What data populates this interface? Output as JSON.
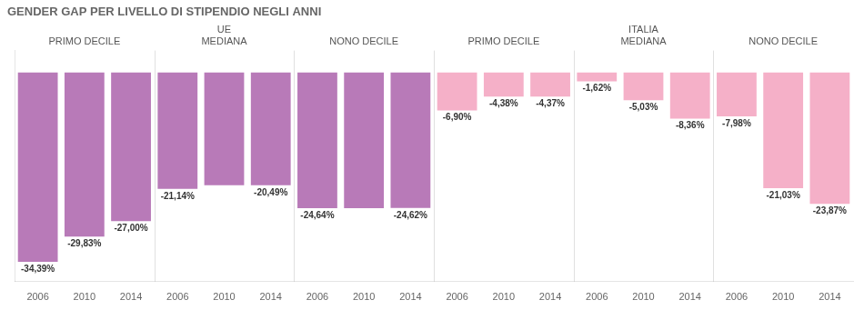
{
  "chart_data": {
    "type": "bar",
    "title": "GENDER GAP PER LIVELLO DI STIPENDIO NEGLI ANNI",
    "categories": [
      "2006",
      "2010",
      "2014",
      "2006",
      "2010",
      "2014",
      "2006",
      "2010",
      "2014",
      "2006",
      "2010",
      "2014",
      "2006",
      "2010",
      "2014",
      "2006",
      "2010",
      "2014"
    ],
    "values": [
      -34.39,
      -29.83,
      -27.0,
      -21.14,
      -20.49,
      -20.49,
      -24.64,
      -24.64,
      -24.62,
      -6.9,
      -4.38,
      -4.37,
      -1.62,
      -5.03,
      -8.36,
      -7.98,
      -21.03,
      -23.87
    ],
    "value_labels": [
      "-34,39%",
      "-29,83%",
      "-27,00%",
      "-21,14%",
      null,
      "-20,49%",
      "-24,64%",
      null,
      "-24,62%",
      "-6,90%",
      "-4,38%",
      "-4,37%",
      "-1,62%",
      "-5,03%",
      "-8,36%",
      "-7,98%",
      "-21,03%",
      "-23,87%"
    ],
    "colors": [
      "#b87ab8",
      "#b87ab8",
      "#b87ab8",
      "#b87ab8",
      "#b87ab8",
      "#b87ab8",
      "#b87ab8",
      "#b87ab8",
      "#b87ab8",
      "#f5b0c8",
      "#f5b0c8",
      "#f5b0c8",
      "#f5b0c8",
      "#f5b0c8",
      "#f5b0c8",
      "#f5b0c8",
      "#f5b0c8",
      "#f5b0c8"
    ],
    "annotations": [
      {
        "text": "PRIMO DECILE"
      },
      {
        "text": "UE\nMEDIANA"
      },
      {
        "text": "NONO DECILE"
      },
      {
        "text": "PRIMO DECILE"
      },
      {
        "text": "ITALIA\nMEDIANA"
      },
      {
        "text": "NONO DECILE"
      }
    ],
    "ylim": [
      -38,
      4
    ],
    "data_labels": true,
    "tick_labels": "x",
    "grid": false
  }
}
